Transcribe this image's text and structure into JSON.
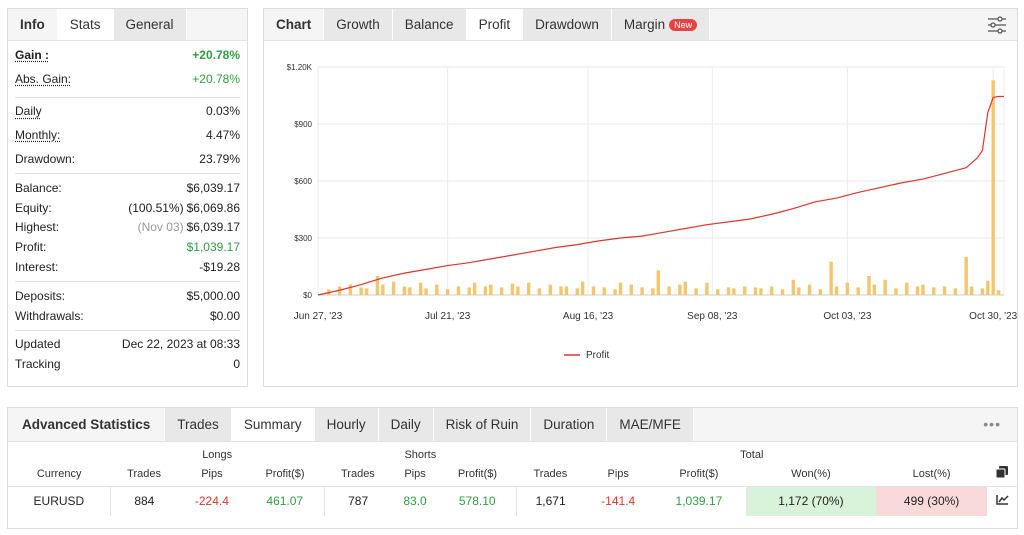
{
  "info": {
    "tabs": [
      "Info",
      "Stats",
      "General"
    ],
    "active_tab": "Stats",
    "gain": {
      "label": "Gain :",
      "value": "+20.78%"
    },
    "abs_gain": {
      "label": "Abs. Gain:",
      "value": "+20.78%"
    },
    "daily": {
      "label": "Daily",
      "value": "0.03%"
    },
    "monthly": {
      "label": "Monthly:",
      "value": "4.47%"
    },
    "drawdown": {
      "label": "Drawdown:",
      "value": "23.79%"
    },
    "balance": {
      "label": "Balance:",
      "value": "$6,039.17"
    },
    "equity": {
      "label": "Equity:",
      "note": "(100.51%)",
      "value": "$6,069.86"
    },
    "highest": {
      "label": "Highest:",
      "note": "(Nov 03)",
      "value": "$6,039.17"
    },
    "profit": {
      "label": "Profit:",
      "value": "$1,039.17"
    },
    "interest": {
      "label": "Interest:",
      "value": "-$19.28"
    },
    "deposits": {
      "label": "Deposits:",
      "value": "$5,000.00"
    },
    "withdrawals": {
      "label": "Withdrawals:",
      "value": "$0.00"
    },
    "updated": {
      "label": "Updated",
      "value": "Dec 22, 2023 at 08:33"
    },
    "tracking": {
      "label": "Tracking",
      "value": "0"
    }
  },
  "chart_panel": {
    "tabs": [
      "Chart",
      "Growth",
      "Balance",
      "Profit",
      "Drawdown",
      "Margin"
    ],
    "active_tab": "Profit",
    "new_badge": "New",
    "settings_icon": "sliders-icon"
  },
  "chart_data": {
    "type": "line",
    "y_tick_labels": [
      "$0",
      "$300",
      "$600",
      "$900",
      "$1.20K"
    ],
    "y_ticks": [
      0,
      300,
      600,
      900,
      1200
    ],
    "ylim": [
      0,
      1200
    ],
    "x_tick_labels": [
      "Jun 27, '23",
      "Jul 21, '23",
      "Aug 16, '23",
      "Sep 08, '23",
      "Oct 03, '23",
      "Oct 30, '23"
    ],
    "x_tick_days": [
      0,
      24,
      50,
      73,
      98,
      125
    ],
    "xlim": [
      0,
      127
    ],
    "legend": "Profit",
    "series": [
      {
        "name": "Profit",
        "color": "#e0352b",
        "x": [
          0,
          4,
          8,
          12,
          16,
          20,
          24,
          28,
          32,
          36,
          40,
          44,
          48,
          52,
          56,
          60,
          64,
          68,
          72,
          76,
          80,
          84,
          88,
          92,
          96,
          100,
          104,
          108,
          112,
          116,
          120,
          122,
          123,
          124,
          125,
          126,
          127
        ],
        "values": [
          0,
          25,
          55,
          90,
          115,
          135,
          155,
          170,
          190,
          210,
          230,
          250,
          265,
          285,
          300,
          310,
          330,
          350,
          370,
          385,
          400,
          425,
          455,
          490,
          510,
          540,
          565,
          590,
          610,
          640,
          670,
          720,
          760,
          960,
          1040,
          1045,
          1045
        ]
      }
    ],
    "bars": {
      "color": "#f5c56b",
      "x": [
        2,
        4,
        6,
        8,
        9,
        11,
        12,
        14,
        16,
        17,
        19,
        20,
        22,
        24,
        26,
        28,
        29,
        31,
        32,
        34,
        36,
        37,
        39,
        41,
        43,
        45,
        46,
        48,
        49,
        51,
        53,
        55,
        56,
        58,
        60,
        62,
        63,
        65,
        67,
        68,
        70,
        72,
        74,
        76,
        77,
        79,
        81,
        82,
        84,
        86,
        88,
        89,
        91,
        93,
        95,
        96,
        98,
        100,
        102,
        103,
        105,
        107,
        109,
        111,
        112,
        114,
        116,
        118,
        120,
        121,
        123,
        124,
        125,
        126
      ],
      "values": [
        30,
        45,
        55,
        40,
        35,
        100,
        55,
        70,
        45,
        40,
        65,
        35,
        55,
        30,
        45,
        40,
        65,
        45,
        55,
        40,
        60,
        45,
        65,
        35,
        55,
        45,
        45,
        35,
        70,
        45,
        40,
        30,
        65,
        55,
        40,
        35,
        130,
        45,
        55,
        70,
        35,
        65,
        30,
        40,
        35,
        45,
        40,
        35,
        45,
        30,
        80,
        40,
        55,
        30,
        175,
        45,
        65,
        40,
        100,
        55,
        80,
        35,
        65,
        45,
        55,
        40,
        45,
        35,
        200,
        45,
        35,
        75,
        1130,
        25
      ]
    }
  },
  "advanced": {
    "title": "Advanced Statistics",
    "tabs": [
      "Trades",
      "Summary",
      "Hourly",
      "Daily",
      "Risk of Ruin",
      "Duration",
      "MAE/MFE"
    ],
    "active_tab": "Summary",
    "more": "•••",
    "groups": {
      "longs": "Longs",
      "shorts": "Shorts",
      "total": "Total"
    },
    "headers": [
      "Currency",
      "Trades",
      "Pips",
      "Profit($)",
      "Trades",
      "Pips",
      "Profit($)",
      "Trades",
      "Pips",
      "Profit($)",
      "Won(%)",
      "Lost(%)"
    ],
    "row": {
      "currency": "EURUSD",
      "long_trades": "884",
      "long_pips": "-224.4",
      "long_profit": "461.07",
      "short_trades": "787",
      "short_pips": "83.0",
      "short_profit": "578.10",
      "total_trades": "1,671",
      "total_pips": "-141.4",
      "total_profit": "1,039.17",
      "won": "1,172 (70%)",
      "lost": "499 (30%)"
    }
  }
}
